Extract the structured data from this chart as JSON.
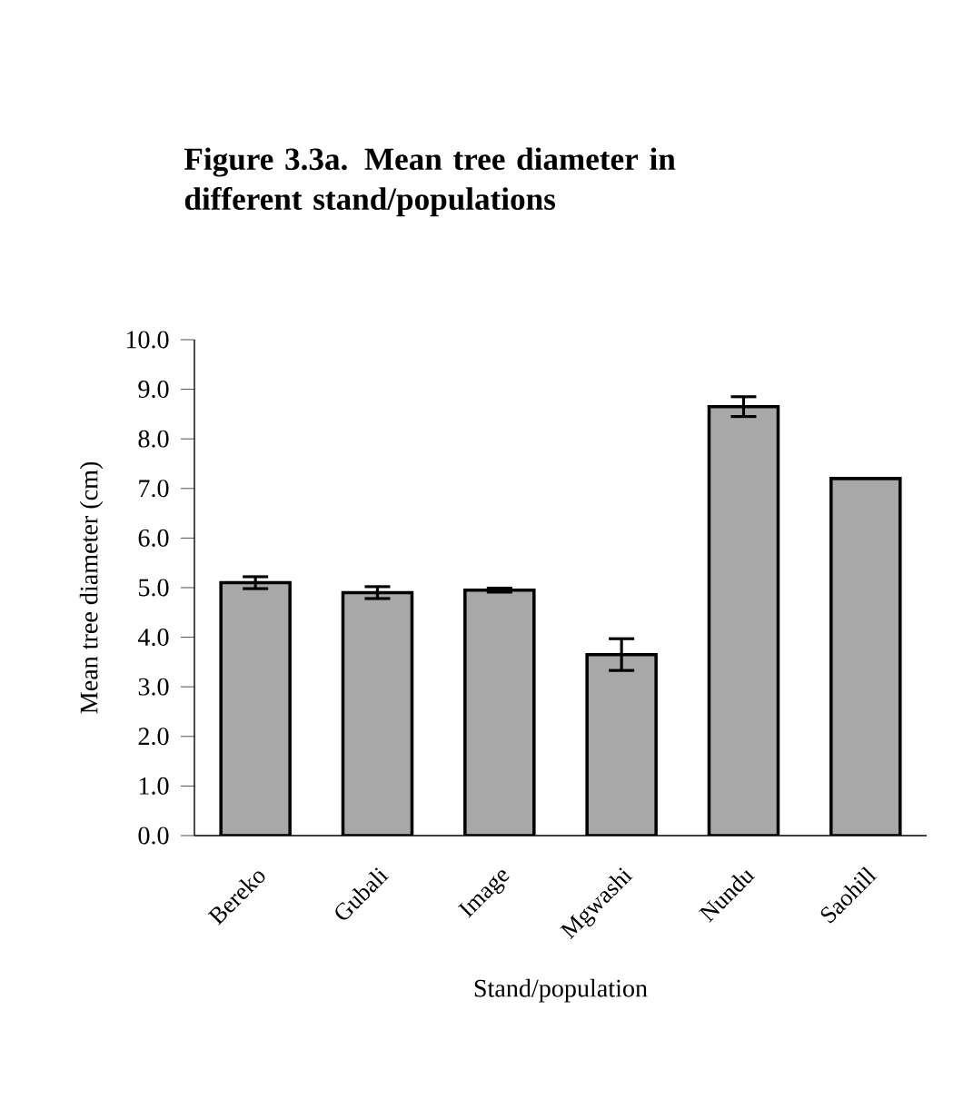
{
  "chart_data": {
    "type": "bar",
    "title": "Figure 3.3a. Mean tree diameter in different stand/populations",
    "xlabel": "Stand/population",
    "ylabel": "Mean tree diameter (cm)",
    "categories": [
      "Bereko",
      "Gubali",
      "Image",
      "Mgwashi",
      "Nundu",
      "Saohill"
    ],
    "values": [
      5.1,
      4.9,
      4.95,
      3.65,
      8.65,
      7.2
    ],
    "errors": [
      0.12,
      0.12,
      0.04,
      0.32,
      0.2,
      null
    ],
    "color": "#a8a8a8",
    "ylim": [
      0,
      10
    ],
    "yticks": [
      {
        "value": 0,
        "label": "0.0"
      },
      {
        "value": 1,
        "label": "1.0"
      },
      {
        "value": 2,
        "label": "2.0"
      },
      {
        "value": 3,
        "label": "3.0"
      },
      {
        "value": 4,
        "label": "4.0"
      },
      {
        "value": 5,
        "label": "5.0"
      },
      {
        "value": 6,
        "label": "6.0"
      },
      {
        "value": 7,
        "label": "7.0"
      },
      {
        "value": 8,
        "label": "8.0"
      },
      {
        "value": 9,
        "label": "9.0"
      },
      {
        "value": 10,
        "label": "10.0"
      }
    ]
  }
}
